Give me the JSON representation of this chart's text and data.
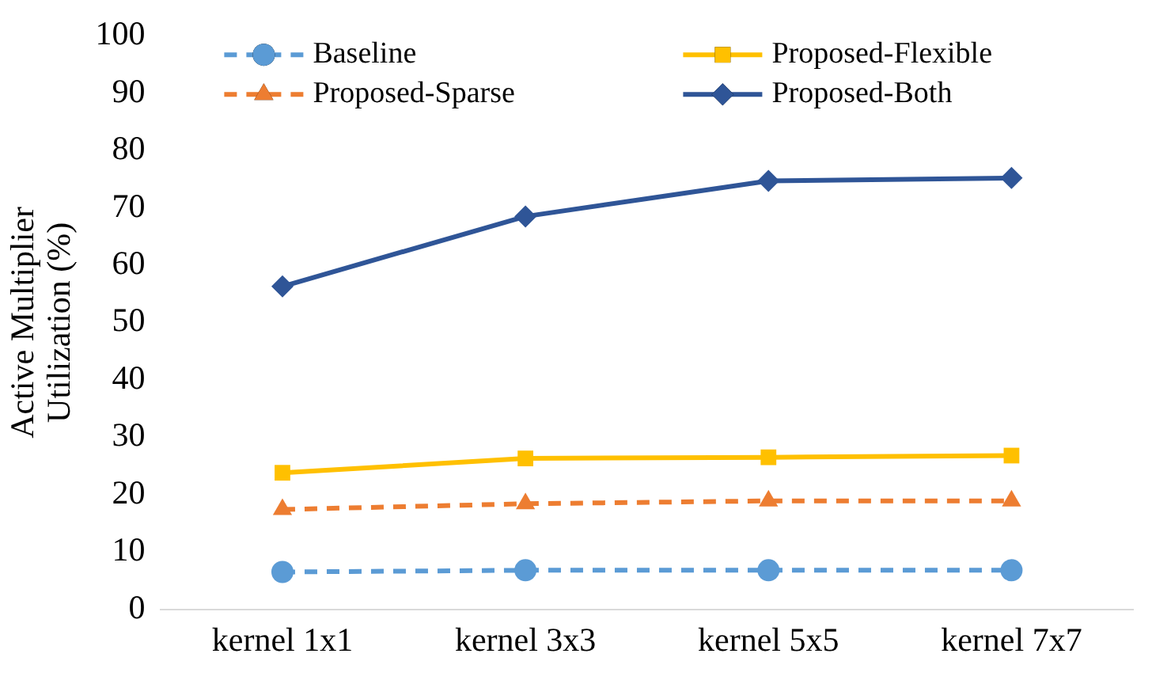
{
  "chart_data": {
    "type": "line",
    "ylabel": "Active Multiplier Utilization (%)",
    "categories": [
      "kernel 1x1",
      "kernel 3x3",
      "kernel 5x5",
      "kernel 7x7"
    ],
    "series": [
      {
        "name": "Baseline",
        "color": "#5b9bd5",
        "values": [
          6.5,
          6.8,
          6.8,
          6.8
        ],
        "marker": "circle",
        "line_style": "dashed"
      },
      {
        "name": "Proposed-Flexible",
        "color": "#ffc000",
        "values": [
          23.8,
          26.3,
          26.5,
          26.8
        ],
        "marker": "square",
        "line_style": "solid"
      },
      {
        "name": "Proposed-Sparse",
        "color": "#ed7d31",
        "values": [
          17.4,
          18.4,
          18.9,
          18.9
        ],
        "marker": "triangle",
        "line_style": "dashed"
      },
      {
        "name": "Proposed-Both",
        "color": "#2f5597",
        "values": [
          56.3,
          68.5,
          74.7,
          75.2
        ],
        "marker": "diamond",
        "line_style": "solid"
      }
    ],
    "ylim": [
      0,
      100
    ],
    "yticks": [
      0,
      10,
      20,
      30,
      40,
      50,
      60,
      70,
      80,
      90,
      100
    ],
    "grid": false,
    "legend": "top"
  }
}
